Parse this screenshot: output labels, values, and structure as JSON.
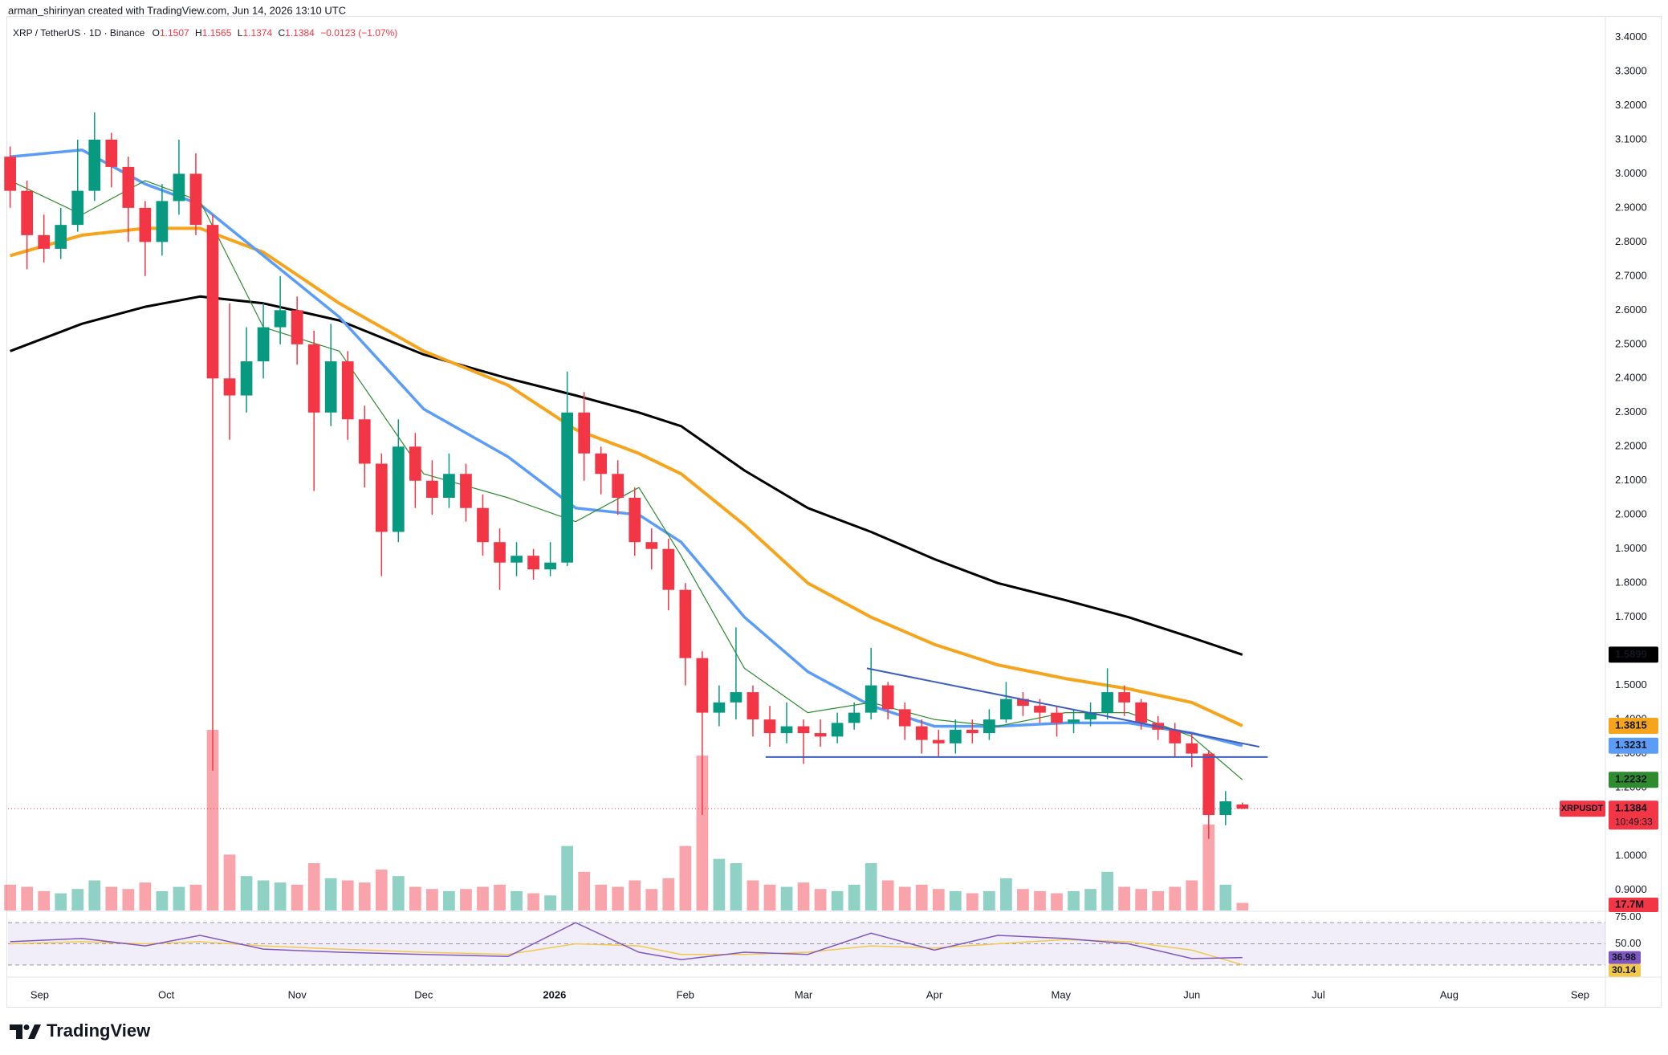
{
  "header": {
    "credit": "arman_shirinyan created with TradingView.com, Jun 14, 2026 13:10 UTC",
    "symbol": "XRP / TetherUS · 1D · Binance",
    "ohlc": [
      {
        "key": "O",
        "value": "1.1507"
      },
      {
        "key": "H",
        "value": "1.1565"
      },
      {
        "key": "L",
        "value": "1.1374"
      },
      {
        "key": "C",
        "value": "1.1384"
      }
    ],
    "change": "−0.0123 (−1.07%)"
  },
  "footer": {
    "brand": "TradingView"
  },
  "chart_data": {
    "type": "candlestick",
    "xlim": [
      -7.5,
      371
    ],
    "xticks": [
      {
        "value": 0,
        "label": "Sep"
      },
      {
        "value": 30,
        "label": "Oct"
      },
      {
        "value": 61,
        "label": "Nov"
      },
      {
        "value": 91,
        "label": "Dec"
      },
      {
        "value": 122,
        "label": "2026"
      },
      {
        "value": 153,
        "label": "Feb"
      },
      {
        "value": 181,
        "label": "Mar"
      },
      {
        "value": 212,
        "label": "Apr"
      },
      {
        "value": 242,
        "label": "May"
      },
      {
        "value": 273,
        "label": "Jun"
      },
      {
        "value": 303,
        "label": "Jul"
      },
      {
        "value": 334,
        "label": "Aug"
      },
      {
        "value": 365,
        "label": "Sep"
      }
    ],
    "ylim": [
      0.84,
      3.46
    ],
    "yticks": [
      {
        "value": 0.9,
        "label": "0.9000"
      },
      {
        "value": 1.0,
        "label": "1.0000"
      },
      {
        "value": 1.1,
        "label": "1.1000"
      },
      {
        "value": 1.2,
        "label": "1.2000"
      },
      {
        "value": 1.3,
        "label": "1.3000"
      },
      {
        "value": 1.4,
        "label": "1.4000"
      },
      {
        "value": 1.5,
        "label": "1.5000"
      },
      {
        "value": 1.6,
        "label": "1.6000"
      },
      {
        "value": 1.7,
        "label": "1.7000"
      },
      {
        "value": 1.8,
        "label": "1.8000"
      },
      {
        "value": 1.9,
        "label": "1.9000"
      },
      {
        "value": 2.0,
        "label": "2.0000"
      },
      {
        "value": 2.1,
        "label": "2.1000"
      },
      {
        "value": 2.2,
        "label": "2.2000"
      },
      {
        "value": 2.3,
        "label": "2.3000"
      },
      {
        "value": 2.4,
        "label": "2.4000"
      },
      {
        "value": 2.5,
        "label": "2.5000"
      },
      {
        "value": 2.6,
        "label": "2.6000"
      },
      {
        "value": 2.7,
        "label": "2.7000"
      },
      {
        "value": 2.8,
        "label": "2.8000"
      },
      {
        "value": 2.9,
        "label": "2.9000"
      },
      {
        "value": 3.0,
        "label": "3.0000"
      },
      {
        "value": 3.1,
        "label": "3.1000"
      },
      {
        "value": 3.2,
        "label": "3.2000"
      },
      {
        "value": 3.3,
        "label": "3.3000"
      },
      {
        "value": 3.4,
        "label": "3.4000"
      }
    ],
    "grid": false,
    "up_color": "#089981",
    "down_color": "#f23645",
    "candles": {
      "x": [
        -7,
        -3,
        1,
        5,
        9,
        13,
        17,
        21,
        25,
        29,
        33,
        37,
        41,
        45,
        49,
        53,
        57,
        61,
        65,
        69,
        73,
        77,
        81,
        85,
        89,
        93,
        97,
        101,
        105,
        109,
        113,
        117,
        121,
        125,
        129,
        133,
        137,
        141,
        145,
        149,
        153,
        157,
        161,
        165,
        169,
        173,
        177,
        181,
        185,
        189,
        193,
        197,
        201,
        205,
        209,
        213,
        217,
        221,
        225,
        229,
        233,
        237,
        241,
        245,
        249,
        253,
        257,
        261,
        265,
        269,
        273,
        277,
        281,
        285
      ],
      "open": [
        3.05,
        2.95,
        2.82,
        2.78,
        2.85,
        2.95,
        3.1,
        3.02,
        2.9,
        2.8,
        2.92,
        3.0,
        2.85,
        2.4,
        2.35,
        2.45,
        2.55,
        2.6,
        2.5,
        2.3,
        2.45,
        2.28,
        2.15,
        1.95,
        2.2,
        2.1,
        2.05,
        2.12,
        2.02,
        1.92,
        1.86,
        1.88,
        1.84,
        1.86,
        2.3,
        2.18,
        2.12,
        2.05,
        1.92,
        1.9,
        1.78,
        1.58,
        1.42,
        1.45,
        1.48,
        1.4,
        1.36,
        1.38,
        1.36,
        1.35,
        1.39,
        1.42,
        1.5,
        1.43,
        1.38,
        1.34,
        1.33,
        1.37,
        1.36,
        1.4,
        1.46,
        1.44,
        1.42,
        1.39,
        1.4,
        1.42,
        1.48,
        1.45,
        1.39,
        1.37,
        1.33,
        1.3,
        1.12,
        1.1507
      ],
      "high": [
        3.08,
        2.98,
        2.88,
        2.9,
        3.1,
        3.18,
        3.12,
        3.05,
        2.92,
        2.97,
        3.1,
        3.06,
        2.88,
        2.62,
        2.55,
        2.62,
        2.7,
        2.64,
        2.54,
        2.56,
        2.48,
        2.32,
        2.18,
        2.28,
        2.24,
        2.16,
        2.18,
        2.15,
        2.06,
        1.96,
        1.92,
        1.9,
        1.92,
        2.42,
        2.36,
        2.2,
        2.16,
        2.08,
        1.96,
        1.93,
        1.8,
        1.6,
        1.5,
        1.67,
        1.5,
        1.44,
        1.45,
        1.4,
        1.4,
        1.42,
        1.45,
        1.61,
        1.51,
        1.45,
        1.4,
        1.37,
        1.4,
        1.4,
        1.43,
        1.51,
        1.48,
        1.46,
        1.44,
        1.43,
        1.45,
        1.55,
        1.5,
        1.46,
        1.41,
        1.39,
        1.36,
        1.31,
        1.19,
        1.1565
      ],
      "low": [
        2.9,
        2.72,
        2.74,
        2.75,
        2.83,
        2.92,
        2.96,
        2.8,
        2.7,
        2.76,
        2.88,
        2.82,
        1.25,
        2.22,
        2.3,
        2.4,
        2.5,
        2.44,
        2.07,
        2.26,
        2.22,
        2.08,
        1.82,
        1.92,
        2.02,
        2.0,
        2.02,
        1.98,
        1.88,
        1.78,
        1.82,
        1.81,
        1.82,
        1.85,
        2.1,
        2.06,
        2.0,
        1.88,
        1.84,
        1.72,
        1.5,
        1.12,
        1.38,
        1.4,
        1.35,
        1.32,
        1.33,
        1.27,
        1.32,
        1.33,
        1.37,
        1.4,
        1.4,
        1.34,
        1.3,
        1.29,
        1.3,
        1.33,
        1.34,
        1.39,
        1.41,
        1.39,
        1.35,
        1.36,
        1.38,
        1.4,
        1.41,
        1.37,
        1.34,
        1.29,
        1.26,
        1.05,
        1.09,
        1.1374
      ],
      "close": [
        2.95,
        2.82,
        2.78,
        2.85,
        2.95,
        3.1,
        3.02,
        2.9,
        2.8,
        2.92,
        3.0,
        2.85,
        2.4,
        2.35,
        2.45,
        2.55,
        2.6,
        2.5,
        2.3,
        2.45,
        2.28,
        2.15,
        1.95,
        2.2,
        2.1,
        2.05,
        2.12,
        2.02,
        1.92,
        1.86,
        1.88,
        1.84,
        1.86,
        2.3,
        2.18,
        2.12,
        2.05,
        1.92,
        1.9,
        1.78,
        1.58,
        1.42,
        1.45,
        1.48,
        1.4,
        1.36,
        1.38,
        1.36,
        1.35,
        1.39,
        1.42,
        1.5,
        1.43,
        1.38,
        1.34,
        1.33,
        1.37,
        1.36,
        1.4,
        1.46,
        1.44,
        1.42,
        1.39,
        1.4,
        1.42,
        1.48,
        1.45,
        1.39,
        1.37,
        1.33,
        1.3,
        1.12,
        1.16,
        1.1384
      ],
      "volume": [
        60,
        55,
        45,
        40,
        50,
        70,
        55,
        50,
        65,
        45,
        55,
        60,
        420,
        130,
        80,
        70,
        65,
        60,
        110,
        75,
        70,
        65,
        95,
        80,
        55,
        50,
        45,
        50,
        55,
        60,
        45,
        40,
        35,
        150,
        90,
        60,
        55,
        70,
        50,
        75,
        150,
        360,
        120,
        110,
        70,
        60,
        55,
        65,
        50,
        45,
        60,
        110,
        70,
        55,
        60,
        50,
        45,
        40,
        45,
        75,
        50,
        45,
        40,
        45,
        50,
        90,
        55,
        50,
        45,
        55,
        70,
        200,
        60,
        17.7
      ],
      "volume_label": "17.7M",
      "symbol": "XRPUSDT",
      "countdown": "10:49:33"
    },
    "ma_x": [
      -7,
      10,
      25,
      38,
      53,
      71,
      91,
      111,
      127,
      142,
      152,
      167,
      182,
      197,
      212,
      227,
      243,
      258,
      273,
      285
    ],
    "series": [
      {
        "color": "#000000",
        "width": 3,
        "tag_text": "#ffffff",
        "values": [
          2.48,
          2.56,
          2.61,
          2.64,
          2.62,
          2.57,
          2.47,
          2.4,
          2.35,
          2.3,
          2.26,
          2.13,
          2.02,
          1.95,
          1.87,
          1.8,
          1.75,
          1.7,
          1.64,
          1.5899
        ]
      },
      {
        "color": "#f5a41c",
        "width": 4,
        "tag_text": "#131722",
        "values": [
          2.76,
          2.82,
          2.84,
          2.84,
          2.77,
          2.62,
          2.48,
          2.38,
          2.25,
          2.18,
          2.12,
          1.97,
          1.8,
          1.7,
          1.62,
          1.56,
          1.52,
          1.49,
          1.45,
          1.3815
        ]
      },
      {
        "color": "#5b9cf6",
        "width": 3.5,
        "tag_text": "#131722",
        "values": [
          3.05,
          3.07,
          2.97,
          2.91,
          2.76,
          2.58,
          2.31,
          2.17,
          2.02,
          2.0,
          1.92,
          1.7,
          1.54,
          1.44,
          1.38,
          1.38,
          1.39,
          1.39,
          1.36,
          1.3231
        ]
      },
      {
        "color": "#2e8b2e",
        "width": 1.2,
        "tag_text": "#ffffff",
        "values": [
          2.98,
          2.88,
          2.98,
          2.92,
          2.55,
          2.48,
          2.12,
          2.05,
          1.98,
          2.08,
          1.88,
          1.55,
          1.42,
          1.45,
          1.4,
          1.38,
          1.42,
          1.42,
          1.35,
          1.2232
        ]
      }
    ],
    "drawings": [
      {
        "color": "#3d5ebf",
        "x": [
          196,
          289
        ],
        "values": [
          1.55,
          1.32
        ]
      },
      {
        "color": "#3d5ebf",
        "x": [
          172,
          291
        ],
        "values": [
          1.29,
          1.29
        ]
      }
    ],
    "rsi": {
      "ylim": [
        20,
        80
      ],
      "yticks": [
        {
          "value": 75,
          "label": "75.00"
        },
        {
          "value": 50,
          "label": "50.00"
        }
      ],
      "levels": [
        70,
        50,
        30
      ],
      "color": "#7e57c2",
      "ma_color": "#f2c94c",
      "values": [
        52,
        55,
        48,
        58,
        45,
        42,
        40,
        38,
        70,
        42,
        35,
        42,
        40,
        60,
        44,
        58,
        55,
        50,
        36,
        36.98
      ],
      "ma_values": [
        50,
        52,
        50,
        52,
        48,
        45,
        42,
        40,
        50,
        48,
        40,
        40,
        42,
        48,
        46,
        50,
        54,
        52,
        44,
        30.14
      ]
    }
  }
}
